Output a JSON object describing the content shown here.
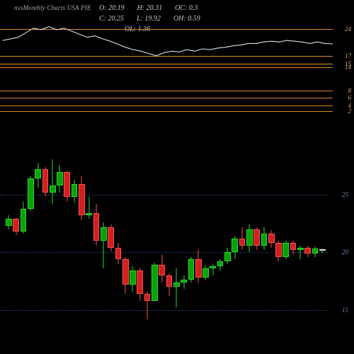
{
  "title_left": "nvs",
  "title_right": "Monthly Charts USA PIE",
  "ohlc": {
    "O": "20.19",
    "H": "20.31",
    "OC": "0.3",
    "C": "20.25",
    "L": "19.92",
    "OH": "0.59",
    "OL": "1.36"
  },
  "colors": {
    "bg": "#000000",
    "orange": "#d88a2a",
    "blue_dot": "#2a4a7a",
    "axis_orange_text": "#c8a060",
    "axis_blue_text": "#6a8ab0",
    "line": "#d8dee6",
    "up_body": "#0aa00a",
    "up_border": "#22e022",
    "down_body": "#d02020",
    "down_border": "#ff5050",
    "doji": "#d8dee6",
    "title_text": "#a8b0b8",
    "ohlc_text": "#c8d0d8"
  },
  "top_panel": {
    "range": {
      "ymin": 2,
      "ymax": 26
    },
    "hlines": [
      {
        "v": 24,
        "label": "24"
      },
      {
        "v": 17,
        "label": "17"
      },
      {
        "v": 15,
        "label": "15"
      },
      {
        "v": 14,
        "label": "14"
      },
      {
        "v": 8,
        "label": "8"
      },
      {
        "v": 6,
        "label": "6"
      },
      {
        "v": 4,
        "label": "4"
      },
      {
        "v": 2.6,
        "label": "2"
      }
    ],
    "line_series": [
      21.0,
      21.4,
      21.8,
      23.0,
      24.2,
      23.8,
      24.6,
      23.8,
      24.2,
      23.4,
      22.6,
      21.8,
      22.2,
      21.4,
      20.8,
      20.0,
      19.2,
      18.6,
      18.2,
      17.6,
      17.0,
      17.8,
      18.2,
      18.0,
      18.6,
      18.2,
      18.8,
      18.6,
      19.0,
      19.2,
      19.6,
      19.8,
      20.2,
      20.2,
      20.6,
      20.8,
      20.6,
      21.0,
      20.8,
      20.6,
      20.2,
      20.6,
      20.2,
      20.1
    ]
  },
  "bottom_panel": {
    "range": {
      "ymin": 13,
      "ymax": 29
    },
    "hlines": [
      {
        "v": 25,
        "label": "25"
      },
      {
        "v": 20,
        "label": "20"
      },
      {
        "v": 15,
        "label": "15"
      }
    ],
    "candle_width": 8.8,
    "spacing": 10.3,
    "candles": [
      {
        "o": 22.3,
        "h": 23.2,
        "l": 22.0,
        "c": 22.9
      },
      {
        "o": 22.9,
        "h": 23.0,
        "l": 21.5,
        "c": 21.8
      },
      {
        "o": 21.8,
        "h": 24.4,
        "l": 21.6,
        "c": 23.8
      },
      {
        "o": 23.8,
        "h": 26.6,
        "l": 23.6,
        "c": 26.4
      },
      {
        "o": 26.4,
        "h": 27.8,
        "l": 25.6,
        "c": 27.2
      },
      {
        "o": 27.2,
        "h": 27.4,
        "l": 24.9,
        "c": 25.2
      },
      {
        "o": 25.2,
        "h": 28.1,
        "l": 24.2,
        "c": 25.8
      },
      {
        "o": 25.8,
        "h": 27.6,
        "l": 25.2,
        "c": 27.0
      },
      {
        "o": 27.0,
        "h": 27.1,
        "l": 24.4,
        "c": 24.8
      },
      {
        "o": 24.8,
        "h": 26.3,
        "l": 24.3,
        "c": 25.9
      },
      {
        "o": 25.9,
        "h": 26.6,
        "l": 22.8,
        "c": 23.2
      },
      {
        "o": 23.2,
        "h": 24.8,
        "l": 22.9,
        "c": 23.4
      },
      {
        "o": 23.4,
        "h": 24.2,
        "l": 20.6,
        "c": 21.0
      },
      {
        "o": 21.0,
        "h": 22.6,
        "l": 18.6,
        "c": 22.2
      },
      {
        "o": 22.2,
        "h": 22.4,
        "l": 20.1,
        "c": 20.4
      },
      {
        "o": 20.4,
        "h": 20.8,
        "l": 19.0,
        "c": 19.4
      },
      {
        "o": 19.4,
        "h": 19.6,
        "l": 16.4,
        "c": 17.2
      },
      {
        "o": 17.2,
        "h": 18.8,
        "l": 16.6,
        "c": 18.4
      },
      {
        "o": 18.4,
        "h": 18.6,
        "l": 15.8,
        "c": 16.4
      },
      {
        "o": 16.4,
        "h": 16.6,
        "l": 14.2,
        "c": 15.8
      },
      {
        "o": 15.8,
        "h": 19.1,
        "l": 17.9,
        "c": 18.9,
        "force_up": true
      },
      {
        "o": 18.9,
        "h": 19.8,
        "l": 17.4,
        "c": 18.0
      },
      {
        "o": 18.0,
        "h": 18.2,
        "l": 16.2,
        "c": 17.0
      },
      {
        "o": 17.0,
        "h": 18.6,
        "l": 15.2,
        "c": 17.4
      },
      {
        "o": 17.4,
        "h": 18.0,
        "l": 16.8,
        "c": 17.6
      },
      {
        "o": 17.6,
        "h": 19.6,
        "l": 17.4,
        "c": 19.4
      },
      {
        "o": 19.4,
        "h": 20.2,
        "l": 17.4,
        "c": 17.8
      },
      {
        "o": 17.8,
        "h": 18.9,
        "l": 17.6,
        "c": 18.6
      },
      {
        "o": 18.6,
        "h": 19.0,
        "l": 18.0,
        "c": 18.8
      },
      {
        "o": 18.8,
        "h": 19.4,
        "l": 18.4,
        "c": 19.2
      },
      {
        "o": 19.2,
        "h": 20.4,
        "l": 19.0,
        "c": 20.0
      },
      {
        "o": 20.0,
        "h": 21.4,
        "l": 19.4,
        "c": 21.2
      },
      {
        "o": 21.2,
        "h": 22.2,
        "l": 20.2,
        "c": 20.6
      },
      {
        "o": 20.6,
        "h": 22.4,
        "l": 20.0,
        "c": 22.0
      },
      {
        "o": 22.0,
        "h": 22.2,
        "l": 20.2,
        "c": 20.6
      },
      {
        "o": 20.6,
        "h": 22.2,
        "l": 20.2,
        "c": 21.6
      },
      {
        "o": 21.6,
        "h": 21.9,
        "l": 20.4,
        "c": 20.8
      },
      {
        "o": 20.8,
        "h": 21.0,
        "l": 19.2,
        "c": 19.6
      },
      {
        "o": 19.6,
        "h": 21.0,
        "l": 19.4,
        "c": 20.8
      },
      {
        "o": 20.8,
        "h": 21.0,
        "l": 19.8,
        "c": 20.2
      },
      {
        "o": 20.2,
        "h": 20.6,
        "l": 19.4,
        "c": 20.4
      },
      {
        "o": 20.4,
        "h": 20.6,
        "l": 19.6,
        "c": 19.9
      },
      {
        "o": 19.9,
        "h": 20.5,
        "l": 19.6,
        "c": 20.3
      },
      {
        "o": 20.19,
        "h": 20.31,
        "l": 19.92,
        "c": 20.25
      }
    ]
  }
}
